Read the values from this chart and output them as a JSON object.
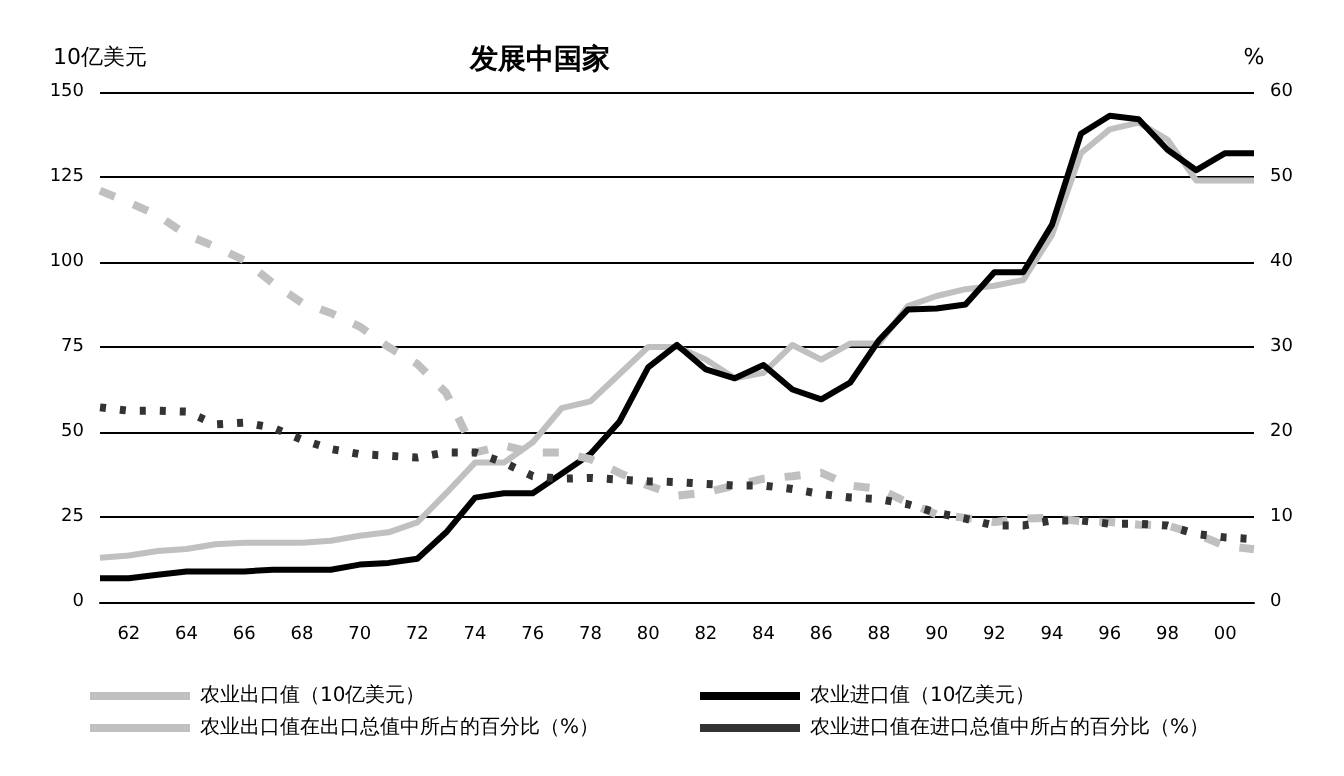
{
  "chart_data": {
    "type": "line",
    "title": "发展中国家",
    "ylabel": "10亿美元",
    "y2label": "%",
    "categories": [
      null,
      "62",
      null,
      "64",
      null,
      "66",
      null,
      "68",
      null,
      "70",
      null,
      "72",
      null,
      "74",
      null,
      "76",
      null,
      "78",
      null,
      "80",
      null,
      "82",
      null,
      "84",
      null,
      "86",
      null,
      "88",
      null,
      "90",
      null,
      "92",
      null,
      "94",
      null,
      "96",
      null,
      "98",
      null,
      "00",
      null
    ],
    "ylim": [
      0,
      150
    ],
    "yticks": [
      0,
      25,
      50,
      75,
      100,
      125,
      150
    ],
    "y2lim": [
      0,
      60
    ],
    "y2ticks": [
      0,
      10,
      20,
      30,
      40,
      50,
      60
    ],
    "grid": "y",
    "legend": "bottom",
    "marker": "none",
    "series": [
      {
        "name": "农业出口值（10亿美元）",
        "color": "#c0c0c0",
        "line_style": "solid",
        "values": [
          13,
          13.7,
          15,
          15.6,
          17,
          17.4,
          17.4,
          17.4,
          18,
          19.5,
          20.5,
          23.4,
          32,
          41,
          41,
          47,
          57,
          59,
          67,
          75,
          75,
          71.3,
          65.8,
          67.4,
          75.6,
          71.3,
          76,
          76,
          87,
          90,
          92,
          93,
          94.7,
          108,
          132,
          139,
          141,
          136,
          124,
          124,
          124
        ]
      },
      {
        "name": "农业进口值（10亿美元）",
        "color": "#000000",
        "line_style": "solid",
        "values": [
          7,
          7,
          8,
          9,
          9,
          9,
          9.5,
          9.5,
          9.5,
          11,
          11.5,
          12.7,
          20.5,
          30.7,
          32,
          32,
          37.7,
          43.5,
          53,
          69,
          75.6,
          68.4,
          65.8,
          69.7,
          62.5,
          59.6,
          64.5,
          77,
          86,
          86.3,
          87.5,
          97,
          97,
          111,
          137.7,
          143,
          142,
          133,
          127,
          132,
          132
        ]
      },
      {
        "name": "农业出口值在出口总值中所占的百分比（%）",
        "color": "#c0c0c0",
        "line_style": "dashed",
        "axis": "y2",
        "values": [
          48.4,
          47,
          45.5,
          43.2,
          41.8,
          40.2,
          37.5,
          35.2,
          34,
          32.4,
          30,
          28,
          24.6,
          17.6,
          18.4,
          17.6,
          17.6,
          16.8,
          15.2,
          13.7,
          12.5,
          12.9,
          13.7,
          14.5,
          14.8,
          15.2,
          13.7,
          13.3,
          11.7,
          10.3,
          9.9,
          9.4,
          9.8,
          9.9,
          9.5,
          9.4,
          9.1,
          9,
          8,
          6.6,
          6.2
        ]
      },
      {
        "name": "农业进口值在进口总值中所占的百分比（%）",
        "color": "#333333",
        "line_style": "dotted",
        "axis": "y2",
        "values": [
          22.9,
          22.5,
          22.5,
          22.4,
          20.9,
          21.1,
          20.5,
          19.1,
          18,
          17.4,
          17.2,
          17,
          17.6,
          17.6,
          16.4,
          14.8,
          14.5,
          14.6,
          14.4,
          14.2,
          14.1,
          13.9,
          13.7,
          13.7,
          13.3,
          12.7,
          12.3,
          12.1,
          11.5,
          10.5,
          9.8,
          9,
          9,
          9.6,
          9.6,
          9.2,
          9.2,
          9,
          8,
          7.6,
          7.4
        ]
      }
    ]
  }
}
